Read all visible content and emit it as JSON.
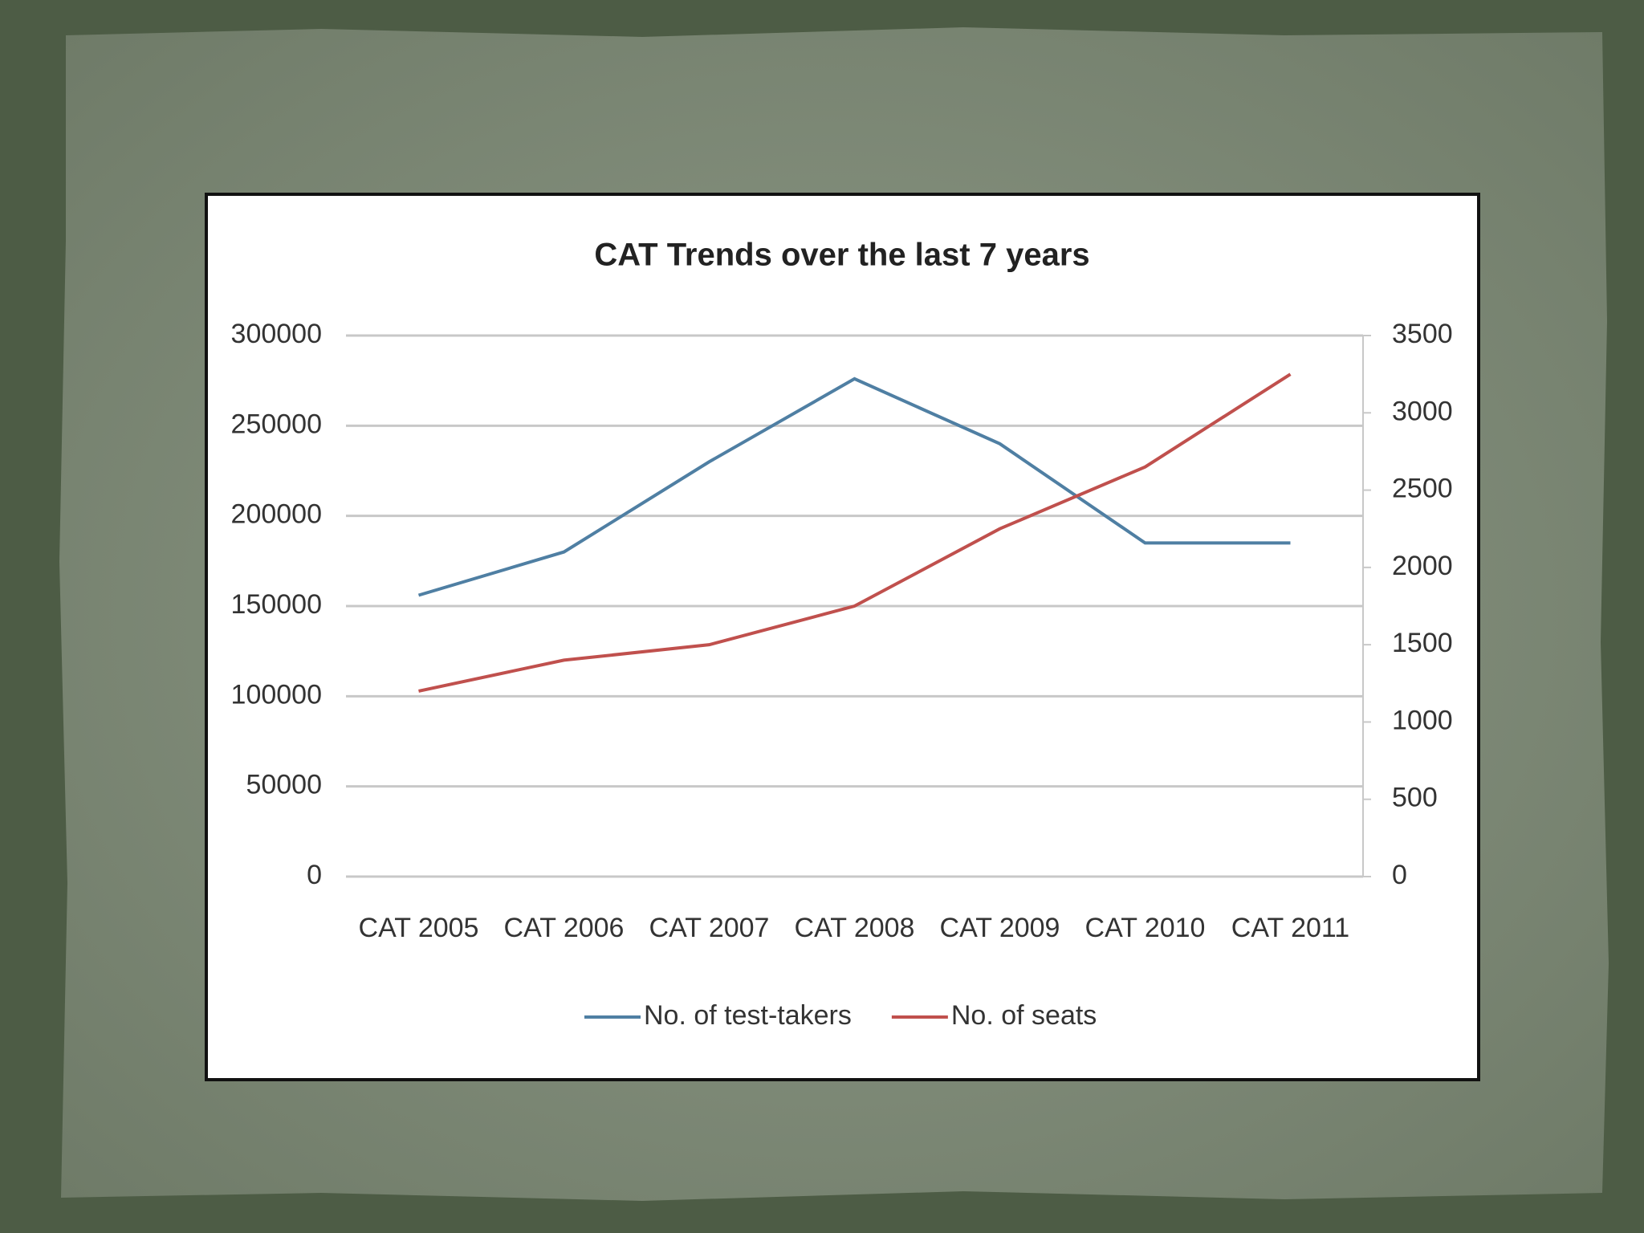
{
  "chart_data": {
    "type": "line",
    "title": "CAT Trends over the last 7 years",
    "categories": [
      "CAT 2005",
      "CAT 2006",
      "CAT 2007",
      "CAT 2008",
      "CAT 2009",
      "CAT 2010",
      "CAT 2011"
    ],
    "series": [
      {
        "name": "No. of test-takers",
        "color": "#4f7fa3",
        "values": [
          156000,
          180000,
          230000,
          276000,
          240000,
          185000,
          185000
        ]
      },
      {
        "name": "No. of seats",
        "color": "#c0504d",
        "axis": "y2",
        "values": [
          1200,
          1400,
          1500,
          1750,
          2250,
          2650,
          3250
        ]
      }
    ],
    "ylim": [
      0,
      300000
    ],
    "yticks": [
      0,
      50000,
      100000,
      150000,
      200000,
      250000,
      300000
    ],
    "y2lim": [
      0,
      3500
    ],
    "y2ticks": [
      0,
      500,
      1000,
      1500,
      2000,
      2500,
      3000,
      3500
    ],
    "grid": true,
    "legend": "bottom"
  }
}
